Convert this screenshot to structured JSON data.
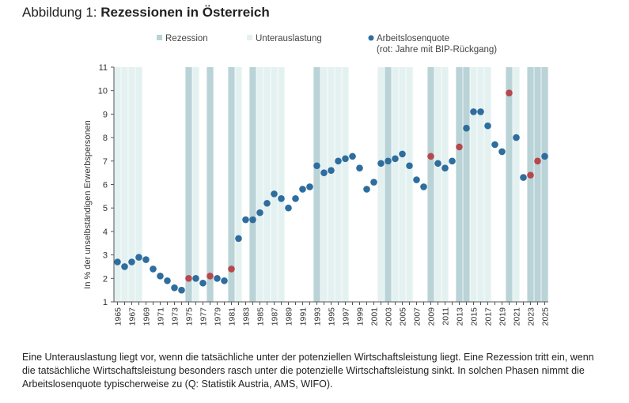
{
  "figure": {
    "title_prefix": "Abbildung 1: ",
    "title_main": "Rezessionen in Österreich"
  },
  "legend": {
    "rezession": "Rezession",
    "unterauslastung": "Unterauslastung",
    "arbeitslosenquote": "Arbeitslosenquote",
    "arbeitslosenquote_note": "(rot: Jahre mit BIP-Rückgang)"
  },
  "note": "Eine Unterauslastung liegt vor, wenn die tatsächliche unter der potenziellen Wirtschaftsleistung liegt. Eine Rezession tritt ein, wenn die tatsächliche Wirtschaftsleistung besonders rasch unter die potenzielle Wirtschaftsleistung sinkt. In solchen Phasen nimmt die Arbeitslosenquote typischerweise zu (Q: Statistik Austria, AMS, WIFO).",
  "colors": {
    "rezession": "#b9d3d7",
    "unterauslastung": "#e4f1f1",
    "point": "#2e6d9e",
    "point_gdp_decline": "#b5484c",
    "axis": "#555555"
  },
  "chart_data": {
    "type": "scatter",
    "ylabel": "In % der unselbständigen Erwerbspersonen",
    "ylim": [
      1,
      11
    ],
    "yticks": [
      1,
      2,
      3,
      4,
      5,
      6,
      7,
      8,
      9,
      10,
      11
    ],
    "xlim": [
      1965,
      2025
    ],
    "xtick_labels": [
      "1965",
      "1967",
      "1969",
      "1971",
      "1973",
      "1975",
      "1977",
      "1979",
      "1981",
      "1983",
      "1985",
      "1987",
      "1989",
      "1991",
      "1993",
      "1995",
      "1997",
      "1999",
      "2001",
      "2003",
      "2005",
      "2007",
      "2009",
      "2011",
      "2013",
      "2015",
      "2017",
      "2019",
      "2021",
      "2023",
      "2025"
    ],
    "grid": "vertical",
    "series": [
      {
        "name": "Arbeitslosenquote",
        "x": [
          1965,
          1966,
          1967,
          1968,
          1969,
          1970,
          1971,
          1972,
          1973,
          1974,
          1975,
          1976,
          1977,
          1978,
          1979,
          1980,
          1981,
          1982,
          1983,
          1984,
          1985,
          1986,
          1987,
          1988,
          1989,
          1990,
          1991,
          1992,
          1993,
          1994,
          1995,
          1996,
          1997,
          1998,
          1999,
          2000,
          2001,
          2002,
          2003,
          2004,
          2005,
          2006,
          2007,
          2008,
          2009,
          2010,
          2011,
          2012,
          2013,
          2014,
          2015,
          2016,
          2017,
          2018,
          2019,
          2020,
          2021,
          2022,
          2023,
          2024,
          2025
        ],
        "y": [
          2.7,
          2.5,
          2.7,
          2.9,
          2.8,
          2.4,
          2.1,
          1.9,
          1.6,
          1.5,
          2.0,
          2.0,
          1.8,
          2.1,
          2.0,
          1.9,
          2.4,
          3.7,
          4.5,
          4.5,
          4.8,
          5.2,
          5.6,
          5.4,
          5.0,
          5.4,
          5.8,
          5.9,
          6.8,
          6.5,
          6.6,
          7.0,
          7.1,
          7.2,
          6.7,
          5.8,
          6.1,
          6.9,
          7.0,
          7.1,
          7.3,
          6.8,
          6.2,
          5.9,
          7.2,
          6.9,
          6.7,
          7.0,
          7.6,
          8.4,
          9.1,
          9.1,
          8.5,
          7.7,
          7.4,
          9.9,
          8.0,
          6.3,
          6.4,
          7.0,
          7.2
        ]
      }
    ],
    "gdp_decline_years": [
      1975,
      1978,
      1981,
      2009,
      2013,
      2020,
      2023,
      2024
    ],
    "rezession_years": [
      1975,
      1978,
      1981,
      1984,
      1993,
      2003,
      2009,
      2013,
      2014,
      2020,
      2023,
      2024,
      2025
    ],
    "unterauslastung_years": [
      1965,
      1966,
      1967,
      1968,
      1975,
      1976,
      1978,
      1981,
      1982,
      1984,
      1985,
      1986,
      1987,
      1988,
      1993,
      1994,
      1995,
      1996,
      1997,
      2002,
      2003,
      2004,
      2005,
      2006,
      2009,
      2010,
      2011,
      2013,
      2014,
      2015,
      2016,
      2017,
      2020,
      2021,
      2023,
      2024,
      2025
    ]
  }
}
